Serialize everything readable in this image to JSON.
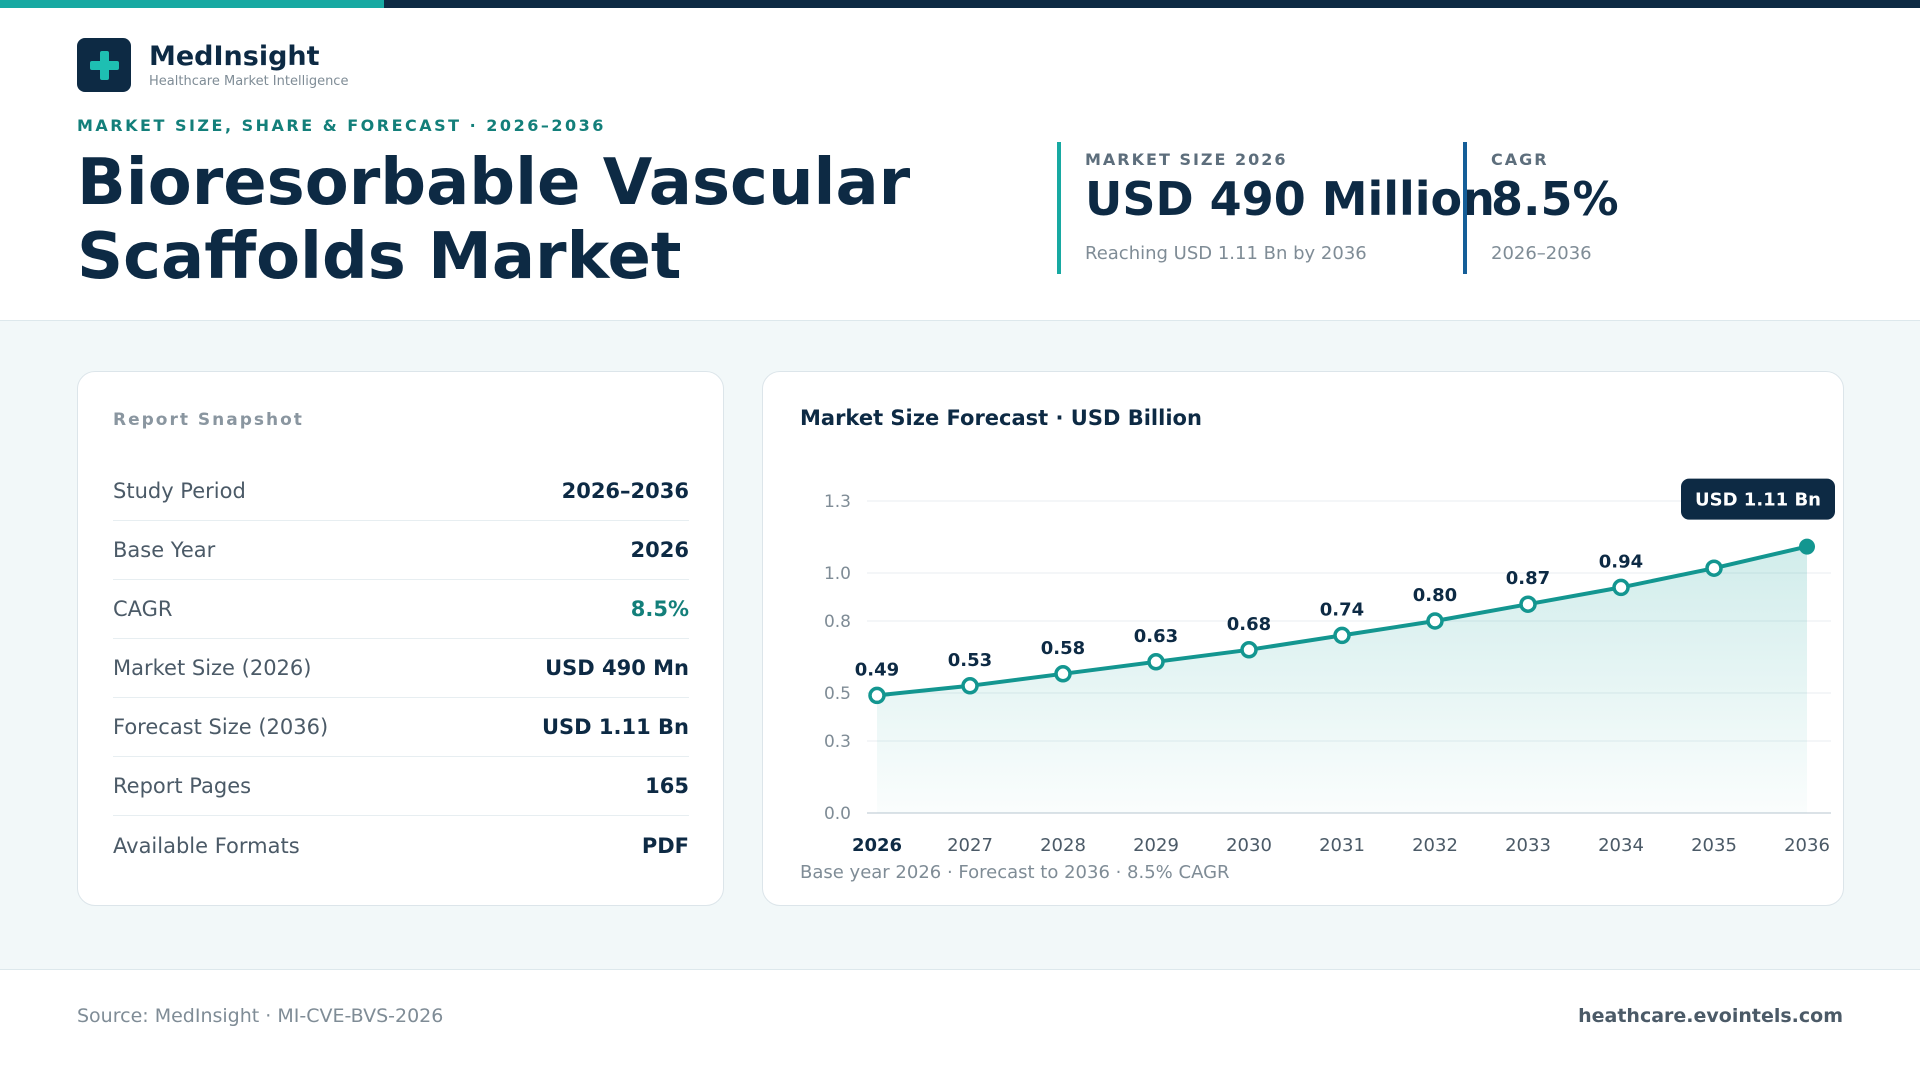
{
  "brand": {
    "name": "MedInsight",
    "tagline": "Healthcare Market Intelligence",
    "logo_icon": "medical-cross-icon"
  },
  "header": {
    "kicker": "MARKET SIZE, SHARE & FORECAST · 2026–2036",
    "title_line1": "Bioresorbable Vascular",
    "title_line2": "Scaffolds Market"
  },
  "stats": [
    {
      "label": "MARKET SIZE 2026",
      "value": "USD 490 Million",
      "sub": "Reaching USD 1.11 Bn by 2036"
    },
    {
      "label": "CAGR",
      "value": "8.5%",
      "sub": "2026–2036"
    }
  ],
  "snapshot": {
    "title": "Report Snapshot",
    "rows": [
      {
        "label": "Study Period",
        "value": "2026–2036"
      },
      {
        "label": "Base Year",
        "value": "2026"
      },
      {
        "label": "CAGR",
        "value": "8.5%"
      },
      {
        "label": "Market Size (2026)",
        "value": "USD 490 Mn"
      },
      {
        "label": "Forecast Size (2036)",
        "value": "USD 1.11 Bn"
      },
      {
        "label": "Report Pages",
        "value": "165"
      },
      {
        "label": "Available Formats",
        "value": "PDF"
      }
    ]
  },
  "chart_data": {
    "type": "area",
    "title": "Market Size Forecast · USD Billion",
    "x": [
      "2026",
      "2027",
      "2028",
      "2029",
      "2030",
      "2031",
      "2032",
      "2033",
      "2034",
      "2035",
      "2036"
    ],
    "series": [
      {
        "values": [
          0.49,
          0.53,
          0.58,
          0.63,
          0.68,
          0.74,
          0.8,
          0.87,
          0.94,
          1.02,
          1.11
        ]
      }
    ],
    "point_labels": [
      "0.49",
      "0.53",
      "0.58",
      "0.63",
      "0.68",
      "0.74",
      "0.80",
      "0.87",
      "0.94",
      "",
      ""
    ],
    "y_ticks": [
      0.0,
      0.3,
      0.5,
      0.8,
      1.0,
      1.3
    ],
    "y_tick_labels": [
      "0.0",
      "0.3",
      "0.5",
      "0.8",
      "1.0",
      "1.3"
    ],
    "ylim": [
      0,
      1.25
    ],
    "callout": "USD 1.11 Bn",
    "footnote": "Base year 2026 · Forecast to 2036 · 8.5% CAGR",
    "color": "#139690",
    "grid": true
  },
  "footer": {
    "source": "Source: MedInsight · MI-CVE-BVS-2026",
    "url": "heathcare.evointels.com"
  }
}
